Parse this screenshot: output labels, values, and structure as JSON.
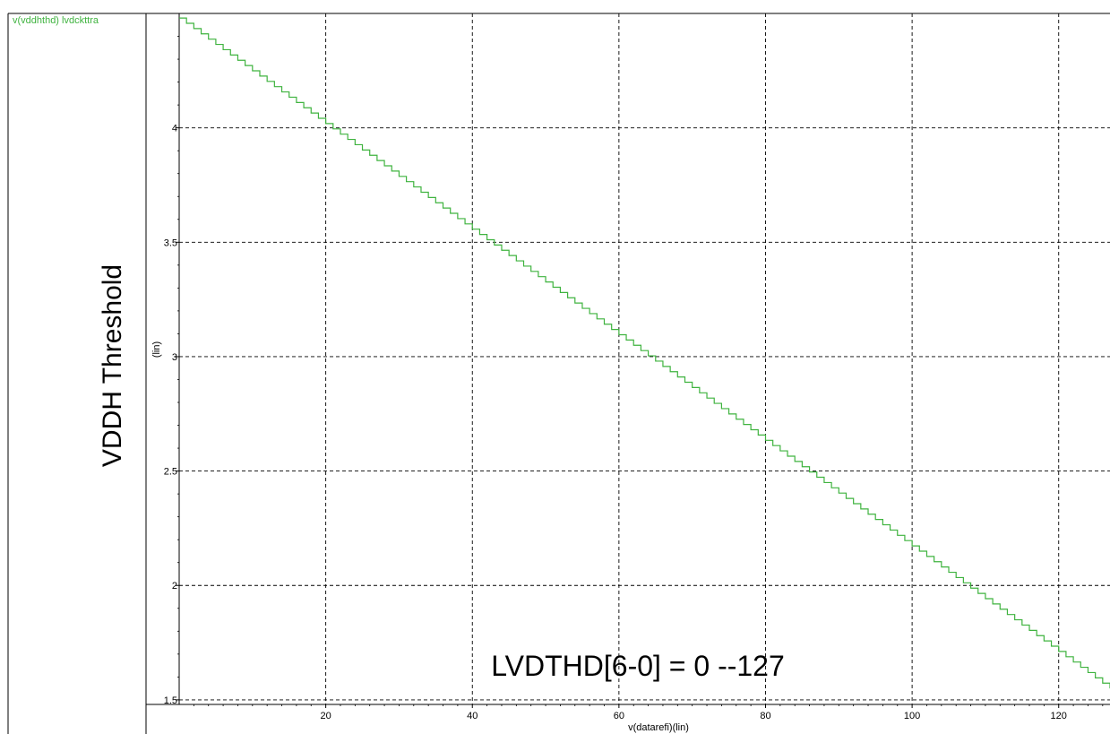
{
  "chart_data": {
    "type": "line",
    "title": "",
    "legend": [
      "v(vddhthd) lvdckttra"
    ],
    "ylabel": "VDDH Threshold",
    "ylabel_unit": "(lin)",
    "xlabel": "v(datarefi)(lin)",
    "annotation": "LVDTHD[6-0] = 0 --127",
    "xlim": [
      0,
      127
    ],
    "ylim": [
      1.48,
      4.5
    ],
    "xticks": [
      20,
      40,
      60,
      80,
      100,
      120
    ],
    "yticks": [
      1.5,
      2,
      2.5,
      3,
      3.5,
      4
    ],
    "ytick_labels": [
      "1.5",
      "2",
      "2.5",
      "3",
      "3.5",
      "4"
    ],
    "grid": true,
    "line_style": "step",
    "series": [
      {
        "name": "v(vddhthd) lvdckttra",
        "color": "#3fb33f",
        "x_start": 0,
        "x_end": 127,
        "y_start": 4.48,
        "y_end": 1.55,
        "steps": 128
      }
    ]
  }
}
